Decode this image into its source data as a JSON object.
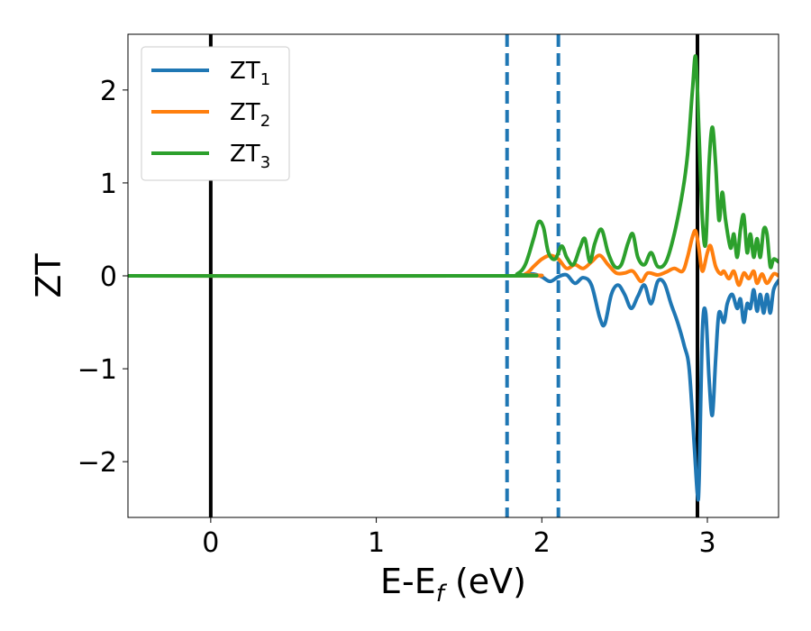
{
  "chart_data": {
    "type": "line",
    "xlabel": {
      "main": "E-E",
      "sub": "f",
      "unit": " (eV)"
    },
    "ylabel": "ZT",
    "xlim": [
      -0.5,
      3.43
    ],
    "ylim": [
      -2.6,
      2.6
    ],
    "xticks": [
      0,
      1,
      2,
      3
    ],
    "yticks": [
      -2,
      -1,
      0,
      1,
      2
    ],
    "ytick_labels": [
      "−2",
      "−1",
      "0",
      "1",
      "2"
    ],
    "grid": false,
    "legend": {
      "position": "top-left",
      "entries": [
        {
          "main": "ZT",
          "sub": "1",
          "color": "#1f77b4"
        },
        {
          "main": "ZT",
          "sub": "2",
          "color": "#ff7f0e"
        },
        {
          "main": "ZT",
          "sub": "3",
          "color": "#2ca02c"
        }
      ]
    },
    "vlines": [
      {
        "x": 0.0,
        "style": "solid",
        "color": "#000000"
      },
      {
        "x": 1.79,
        "style": "dashed",
        "color": "#1f77b4"
      },
      {
        "x": 2.1,
        "style": "dashed",
        "color": "#1f77b4"
      },
      {
        "x": 2.94,
        "style": "solid",
        "color": "#000000"
      }
    ],
    "series": [
      {
        "name": "ZT1",
        "color": "#1f77b4",
        "points": [
          [
            -0.5,
            0
          ],
          [
            1.8,
            0
          ],
          [
            1.9,
            0.01
          ],
          [
            1.95,
            0.02
          ],
          [
            2.0,
            -0.01
          ],
          [
            2.05,
            -0.06
          ],
          [
            2.1,
            -0.01
          ],
          [
            2.15,
            0.01
          ],
          [
            2.2,
            -0.08
          ],
          [
            2.25,
            -0.02
          ],
          [
            2.3,
            -0.1
          ],
          [
            2.35,
            -0.45
          ],
          [
            2.38,
            -0.52
          ],
          [
            2.42,
            -0.2
          ],
          [
            2.46,
            -0.1
          ],
          [
            2.5,
            -0.2
          ],
          [
            2.54,
            -0.35
          ],
          [
            2.58,
            -0.22
          ],
          [
            2.62,
            -0.1
          ],
          [
            2.66,
            -0.3
          ],
          [
            2.7,
            -0.06
          ],
          [
            2.74,
            -0.08
          ],
          [
            2.78,
            -0.3
          ],
          [
            2.82,
            -0.5
          ],
          [
            2.86,
            -0.75
          ],
          [
            2.89,
            -1.0
          ],
          [
            2.92,
            -1.8
          ],
          [
            2.94,
            -2.35
          ],
          [
            2.95,
            -2.2
          ],
          [
            2.97,
            -0.6
          ],
          [
            2.99,
            -0.4
          ],
          [
            3.01,
            -1.1
          ],
          [
            3.03,
            -1.5
          ],
          [
            3.05,
            -0.9
          ],
          [
            3.07,
            -0.4
          ],
          [
            3.1,
            -0.5
          ],
          [
            3.12,
            -0.3
          ],
          [
            3.15,
            -0.2
          ],
          [
            3.18,
            -0.35
          ],
          [
            3.2,
            -0.25
          ],
          [
            3.22,
            -0.5
          ],
          [
            3.24,
            -0.3
          ],
          [
            3.26,
            -0.35
          ],
          [
            3.28,
            -0.15
          ],
          [
            3.3,
            -0.38
          ],
          [
            3.32,
            -0.2
          ],
          [
            3.34,
            -0.4
          ],
          [
            3.36,
            -0.2
          ],
          [
            3.38,
            -0.4
          ],
          [
            3.4,
            -0.15
          ],
          [
            3.43,
            -0.05
          ]
        ]
      },
      {
        "name": "ZT2",
        "color": "#ff7f0e",
        "points": [
          [
            -0.5,
            0
          ],
          [
            1.8,
            0
          ],
          [
            1.9,
            0.02
          ],
          [
            1.95,
            0.1
          ],
          [
            2.0,
            0.18
          ],
          [
            2.05,
            0.22
          ],
          [
            2.1,
            0.18
          ],
          [
            2.15,
            0.08
          ],
          [
            2.2,
            0.12
          ],
          [
            2.25,
            0.08
          ],
          [
            2.3,
            0.15
          ],
          [
            2.35,
            0.22
          ],
          [
            2.4,
            0.12
          ],
          [
            2.45,
            0.03
          ],
          [
            2.5,
            0.03
          ],
          [
            2.55,
            0.05
          ],
          [
            2.6,
            -0.06
          ],
          [
            2.64,
            0.03
          ],
          [
            2.7,
            0.01
          ],
          [
            2.75,
            0.04
          ],
          [
            2.8,
            0.08
          ],
          [
            2.85,
            0.05
          ],
          [
            2.88,
            0.2
          ],
          [
            2.91,
            0.42
          ],
          [
            2.93,
            0.48
          ],
          [
            2.95,
            0.28
          ],
          [
            2.97,
            0.05
          ],
          [
            3.0,
            0.25
          ],
          [
            3.02,
            0.32
          ],
          [
            3.05,
            0.1
          ],
          [
            3.08,
            0.02
          ],
          [
            3.1,
            0.05
          ],
          [
            3.13,
            -0.03
          ],
          [
            3.16,
            0.05
          ],
          [
            3.19,
            -0.1
          ],
          [
            3.22,
            0.03
          ],
          [
            3.25,
            -0.03
          ],
          [
            3.28,
            0.05
          ],
          [
            3.3,
            -0.08
          ],
          [
            3.33,
            0.02
          ],
          [
            3.36,
            -0.08
          ],
          [
            3.4,
            0.02
          ],
          [
            3.43,
            0.0
          ]
        ]
      },
      {
        "name": "ZT3",
        "color": "#2ca02c",
        "points": [
          [
            -0.5,
            0
          ],
          [
            1.78,
            0
          ],
          [
            1.85,
            0.02
          ],
          [
            1.9,
            0.12
          ],
          [
            1.95,
            0.4
          ],
          [
            1.98,
            0.58
          ],
          [
            2.01,
            0.52
          ],
          [
            2.04,
            0.25
          ],
          [
            2.08,
            0.18
          ],
          [
            2.12,
            0.32
          ],
          [
            2.15,
            0.2
          ],
          [
            2.19,
            0.12
          ],
          [
            2.23,
            0.3
          ],
          [
            2.26,
            0.4
          ],
          [
            2.29,
            0.15
          ],
          [
            2.32,
            0.35
          ],
          [
            2.36,
            0.5
          ],
          [
            2.4,
            0.25
          ],
          [
            2.44,
            0.1
          ],
          [
            2.48,
            0.12
          ],
          [
            2.52,
            0.35
          ],
          [
            2.55,
            0.45
          ],
          [
            2.58,
            0.2
          ],
          [
            2.62,
            0.12
          ],
          [
            2.66,
            0.25
          ],
          [
            2.7,
            0.1
          ],
          [
            2.75,
            0.15
          ],
          [
            2.8,
            0.45
          ],
          [
            2.85,
            0.9
          ],
          [
            2.88,
            1.3
          ],
          [
            2.91,
            2.0
          ],
          [
            2.93,
            2.35
          ],
          [
            2.95,
            1.5
          ],
          [
            2.97,
            0.6
          ],
          [
            2.99,
            0.35
          ],
          [
            3.01,
            1.2
          ],
          [
            3.03,
            1.6
          ],
          [
            3.05,
            1.2
          ],
          [
            3.07,
            0.6
          ],
          [
            3.09,
            0.9
          ],
          [
            3.11,
            0.6
          ],
          [
            3.14,
            0.3
          ],
          [
            3.16,
            0.45
          ],
          [
            3.18,
            0.2
          ],
          [
            3.2,
            0.5
          ],
          [
            3.22,
            0.65
          ],
          [
            3.24,
            0.25
          ],
          [
            3.26,
            0.45
          ],
          [
            3.28,
            0.2
          ],
          [
            3.3,
            0.4
          ],
          [
            3.32,
            0.2
          ],
          [
            3.34,
            0.5
          ],
          [
            3.36,
            0.45
          ],
          [
            3.38,
            0.1
          ],
          [
            3.4,
            0.18
          ],
          [
            3.43,
            0.15
          ]
        ]
      }
    ]
  }
}
